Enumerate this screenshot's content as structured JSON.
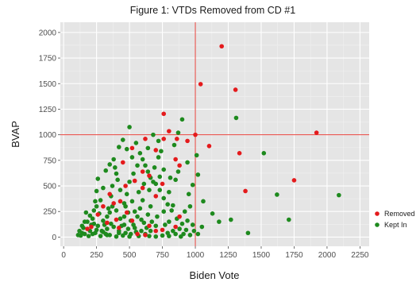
{
  "chart_data": {
    "type": "scatter",
    "title": "Figure 1: VTDs Removed from CD #1",
    "xlabel": "Biden Vote",
    "ylabel": "BVAP",
    "xlim": [
      -25,
      2320
    ],
    "ylim": [
      -90,
      2100
    ],
    "x_ticks": [
      0,
      250,
      500,
      750,
      1000,
      1250,
      1500,
      1750,
      2000,
      2250
    ],
    "y_ticks": [
      0,
      250,
      500,
      750,
      1000,
      1250,
      1500,
      1750,
      2000
    ],
    "x_tick_labels": [
      "0",
      "250",
      "500",
      "750",
      "1000",
      "1250",
      "1500",
      "1750",
      "2000",
      "2250"
    ],
    "y_tick_labels": [
      "0",
      "250",
      "500",
      "750",
      "1000",
      "1250",
      "1500",
      "1750",
      "2000"
    ],
    "grid": true,
    "legend_position": "right",
    "reference_lines": {
      "vertical_x": 1000,
      "horizontal_y": 1000,
      "color": "#e8413a"
    },
    "colors": {
      "panel": "#e5e5e5",
      "grid_major": "#ffffff",
      "grid_minor": "#f0f0f0",
      "removed": "#e41a1c",
      "kept": "#1e8a1e"
    },
    "series": [
      {
        "name": "Removed",
        "color": "#e41a1c",
        "points": [
          [
            1200,
            1865
          ],
          [
            1040,
            1495
          ],
          [
            1305,
            1440
          ],
          [
            1920,
            1020
          ],
          [
            760,
            1205
          ],
          [
            800,
            1035
          ],
          [
            760,
            960
          ],
          [
            860,
            960
          ],
          [
            1105,
            890
          ],
          [
            1335,
            820
          ],
          [
            1750,
            555
          ],
          [
            1380,
            450
          ],
          [
            880,
            700
          ],
          [
            940,
            940
          ],
          [
            650,
            600
          ],
          [
            600,
            480
          ],
          [
            540,
            550
          ],
          [
            470,
            500
          ],
          [
            430,
            350
          ],
          [
            380,
            330
          ],
          [
            350,
            420
          ],
          [
            300,
            300
          ],
          [
            260,
            220
          ],
          [
            480,
            240
          ],
          [
            520,
            160
          ],
          [
            700,
            400
          ],
          [
            750,
            520
          ],
          [
            560,
            30
          ],
          [
            620,
            20
          ],
          [
            650,
            110
          ],
          [
            700,
            60
          ],
          [
            750,
            70
          ],
          [
            850,
            100
          ],
          [
            880,
            200
          ],
          [
            420,
            90
          ],
          [
            330,
            140
          ],
          [
            210,
            100
          ],
          [
            180,
            80
          ],
          [
            600,
            640
          ],
          [
            700,
            850
          ],
          [
            850,
            760
          ],
          [
            520,
            870
          ],
          [
            620,
            960
          ],
          [
            450,
            730
          ],
          [
            400,
            170
          ],
          [
            1000,
            1000
          ]
        ]
      },
      {
        "name": "Kept In",
        "color": "#1e8a1e",
        "points": [
          [
            2090,
            410
          ],
          [
            1710,
            170
          ],
          [
            1620,
            415
          ],
          [
            1520,
            820
          ],
          [
            1310,
            1165
          ],
          [
            1400,
            40
          ],
          [
            1270,
            170
          ],
          [
            1180,
            150
          ],
          [
            1130,
            230
          ],
          [
            1050,
            100
          ],
          [
            1060,
            350
          ],
          [
            1020,
            610
          ],
          [
            1010,
            800
          ],
          [
            980,
            120
          ],
          [
            960,
            300
          ],
          [
            910,
            30
          ],
          [
            940,
            730
          ],
          [
            900,
            1150
          ],
          [
            870,
            1020
          ],
          [
            840,
            900
          ],
          [
            850,
            560
          ],
          [
            800,
            440
          ],
          [
            830,
            310
          ],
          [
            760,
            250
          ],
          [
            800,
            150
          ],
          [
            790,
            40
          ],
          [
            720,
            940
          ],
          [
            720,
            780
          ],
          [
            690,
            680
          ],
          [
            680,
            540
          ],
          [
            650,
            460
          ],
          [
            660,
            300
          ],
          [
            640,
            220
          ],
          [
            610,
            140
          ],
          [
            590,
            60
          ],
          [
            570,
            10
          ],
          [
            500,
            1075
          ],
          [
            520,
            780
          ],
          [
            560,
            700
          ],
          [
            530,
            620
          ],
          [
            500,
            540
          ],
          [
            480,
            420
          ],
          [
            470,
            300
          ],
          [
            460,
            200
          ],
          [
            440,
            110
          ],
          [
            420,
            40
          ],
          [
            400,
            5
          ],
          [
            380,
            760
          ],
          [
            400,
            620
          ],
          [
            370,
            500
          ],
          [
            360,
            400
          ],
          [
            340,
            280
          ],
          [
            330,
            200
          ],
          [
            310,
            120
          ],
          [
            290,
            60
          ],
          [
            280,
            10
          ],
          [
            260,
            570
          ],
          [
            250,
            450
          ],
          [
            240,
            350
          ],
          [
            230,
            260
          ],
          [
            220,
            180
          ],
          [
            210,
            120
          ],
          [
            200,
            60
          ],
          [
            190,
            10
          ],
          [
            170,
            240
          ],
          [
            160,
            150
          ],
          [
            150,
            90
          ],
          [
            140,
            40
          ],
          [
            130,
            15
          ],
          [
            120,
            60
          ],
          [
            110,
            20
          ],
          [
            280,
            360
          ],
          [
            300,
            480
          ],
          [
            320,
            650
          ],
          [
            350,
            710
          ],
          [
            420,
            880
          ],
          [
            450,
            950
          ],
          [
            480,
            860
          ],
          [
            550,
            920
          ],
          [
            580,
            820
          ],
          [
            600,
            760
          ],
          [
            620,
            700
          ],
          [
            640,
            640
          ],
          [
            660,
            580
          ],
          [
            700,
            520
          ],
          [
            730,
            460
          ],
          [
            760,
            380
          ],
          [
            790,
            320
          ],
          [
            820,
            260
          ],
          [
            860,
            180
          ],
          [
            900,
            130
          ],
          [
            930,
            70
          ],
          [
            960,
            20
          ],
          [
            700,
            110
          ],
          [
            660,
            60
          ],
          [
            620,
            30
          ],
          [
            540,
            90
          ],
          [
            510,
            160
          ],
          [
            490,
            240
          ],
          [
            460,
            330
          ],
          [
            430,
            460
          ],
          [
            410,
            560
          ],
          [
            390,
            680
          ],
          [
            370,
            300
          ],
          [
            350,
            240
          ],
          [
            330,
            80
          ],
          [
            300,
            160
          ],
          [
            270,
            230
          ],
          [
            250,
            300
          ],
          [
            230,
            130
          ],
          [
            200,
            210
          ],
          [
            180,
            150
          ],
          [
            350,
            20
          ],
          [
            450,
            15
          ],
          [
            500,
            5
          ],
          [
            550,
            50
          ],
          [
            650,
            10
          ],
          [
            700,
            5
          ],
          [
            750,
            15
          ],
          [
            800,
            10
          ],
          [
            850,
            30
          ],
          [
            880,
            80
          ],
          [
            920,
            250
          ],
          [
            950,
            420
          ],
          [
            980,
            510
          ],
          [
            870,
            640
          ],
          [
            810,
            580
          ],
          [
            760,
            660
          ],
          [
            730,
            590
          ],
          [
            600,
            360
          ],
          [
            580,
            280
          ],
          [
            560,
            200
          ],
          [
            530,
            120
          ],
          [
            430,
            180
          ],
          [
            380,
            100
          ],
          [
            320,
            30
          ],
          [
            260,
            110
          ],
          [
            240,
            40
          ],
          [
            570,
            440
          ],
          [
            610,
            520
          ],
          [
            740,
            840
          ],
          [
            680,
            1000
          ],
          [
            640,
            870
          ],
          [
            520,
            350
          ],
          [
            490,
            80
          ],
          [
            470,
            40
          ],
          [
            400,
            260
          ],
          [
            360,
            130
          ],
          [
            160,
            30
          ],
          [
            140,
            110
          ],
          [
            220,
            30
          ],
          [
            250,
            70
          ],
          [
            300,
            50
          ],
          [
            330,
            20
          ],
          [
            420,
            60
          ],
          [
            460,
            120
          ],
          [
            510,
            30
          ],
          [
            540,
            250
          ],
          [
            590,
            170
          ],
          [
            630,
            90
          ],
          [
            670,
            150
          ],
          [
            710,
            200
          ],
          [
            770,
            120
          ],
          [
            830,
            60
          ],
          [
            890,
            5
          ],
          [
            940,
            160
          ],
          [
            990,
            60
          ],
          [
            1020,
            30
          ]
        ]
      }
    ]
  }
}
